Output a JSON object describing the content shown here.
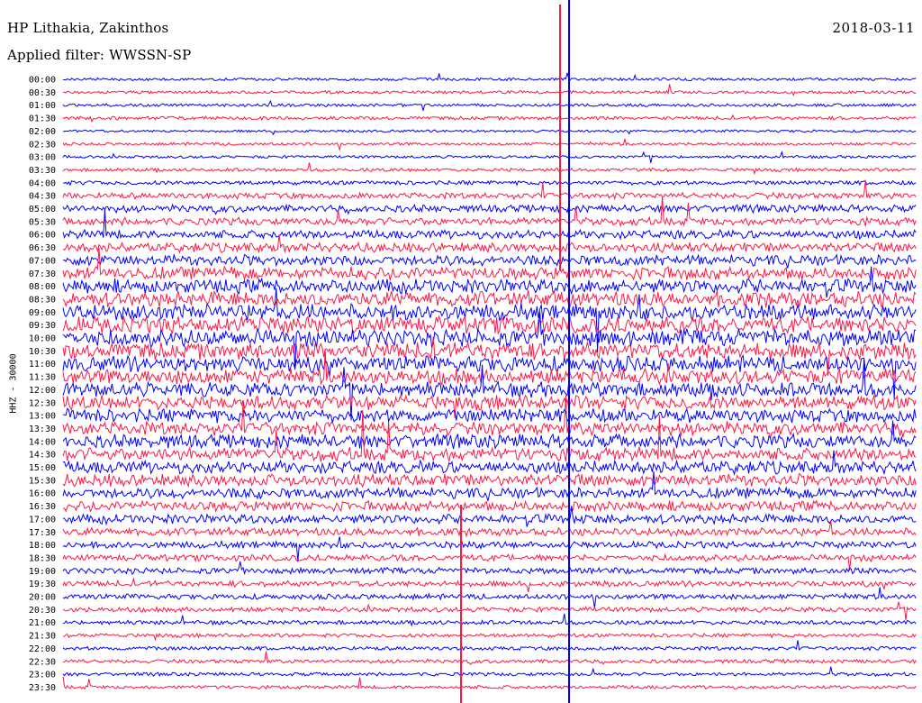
{
  "header": {
    "station": "HP Lithakia, Zakinthos",
    "filter": "Applied filter: WWSSN-SP",
    "date": "2018-03-11"
  },
  "channel_label": "HHZ - 30000",
  "chart_data": {
    "type": "line",
    "title": "HP Lithakia, Zakinthos",
    "subtitle": "Applied filter: WWSSN-SP",
    "date": "2018-03-11",
    "ylabel": "HHZ - 30000",
    "row_labels": [
      "00:00",
      "00:30",
      "01:00",
      "01:30",
      "02:00",
      "02:30",
      "03:00",
      "03:30",
      "04:00",
      "04:30",
      "05:00",
      "05:30",
      "06:00",
      "06:30",
      "07:00",
      "07:30",
      "08:00",
      "08:30",
      "09:00",
      "09:30",
      "10:00",
      "10:30",
      "11:00",
      "11:30",
      "12:00",
      "12:30",
      "13:00",
      "13:30",
      "14:00",
      "14:30",
      "15:00",
      "15:30",
      "16:00",
      "16:30",
      "17:00",
      "17:30",
      "18:00",
      "18:30",
      "19:00",
      "19:30",
      "20:00",
      "20:30",
      "21:00",
      "21:30",
      "22:00",
      "22:30",
      "23:00",
      "23:30"
    ],
    "trace_colors": [
      "#0000ff",
      "#ff1744"
    ],
    "activity": [
      0.05,
      0.06,
      0.06,
      0.08,
      0.03,
      0.05,
      0.05,
      0.08,
      0.12,
      0.22,
      0.28,
      0.3,
      0.35,
      0.38,
      0.45,
      0.55,
      0.62,
      0.68,
      0.72,
      0.76,
      0.78,
      0.76,
      0.72,
      0.68,
      0.66,
      0.62,
      0.6,
      0.58,
      0.6,
      0.58,
      0.55,
      0.52,
      0.45,
      0.42,
      0.38,
      0.3,
      0.25,
      0.24,
      0.22,
      0.2,
      0.18,
      0.16,
      0.12,
      0.1,
      0.1,
      0.1,
      0.08,
      0.08
    ]
  }
}
